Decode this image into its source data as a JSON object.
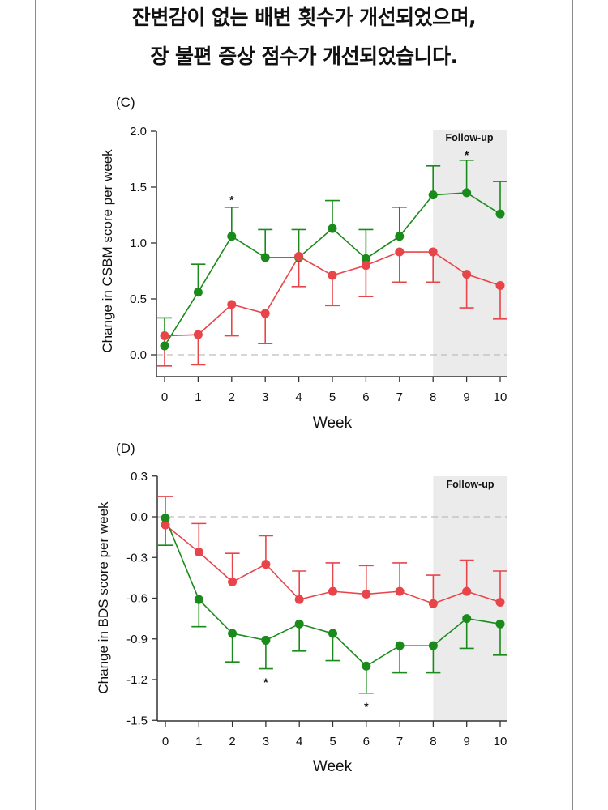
{
  "headline": {
    "line1": "잔변감이 없는 배변 횟수가 개선되었으며,",
    "line2": "장 불편 증상 점수가 개선되었습니다."
  },
  "colors": {
    "green": "#1a8a1a",
    "red": "#e8454a",
    "followup_bg": "#ebebeb",
    "zero_line": "#bdbdbd"
  },
  "chart_data": [
    {
      "type": "line",
      "panel": "(C)",
      "xlabel": "Week",
      "ylabel": "Change in CSBM score per week",
      "x": [
        0,
        1,
        2,
        3,
        4,
        5,
        6,
        7,
        8,
        9,
        10
      ],
      "xticks": [
        "0",
        "1",
        "2",
        "3",
        "4",
        "5",
        "6",
        "7",
        "8",
        "9",
        "10"
      ],
      "ylim": [
        -0.2,
        2.0
      ],
      "yticks": [
        "0.0",
        "0.5",
        "1.0",
        "1.5",
        "2.0"
      ],
      "ytick_values": [
        0.0,
        0.5,
        1.0,
        1.5,
        2.0
      ],
      "reference_line": 0.0,
      "shaded_region": {
        "label": "Follow-up",
        "x_from": 8,
        "x_to": 10
      },
      "series": [
        {
          "name": "green",
          "color": "#1a8a1a",
          "values": [
            0.08,
            0.56,
            1.06,
            0.87,
            0.87,
            1.13,
            0.86,
            1.06,
            1.43,
            1.45,
            1.26
          ],
          "error_upper": [
            0.33,
            0.81,
            1.32,
            1.12,
            1.12,
            1.38,
            1.12,
            1.32,
            1.69,
            1.74,
            1.55
          ],
          "error_direction": "up"
        },
        {
          "name": "red",
          "color": "#e8454a",
          "values": [
            0.17,
            0.18,
            0.45,
            0.37,
            0.88,
            0.71,
            0.8,
            0.92,
            0.92,
            0.72,
            0.62
          ],
          "error_lower": [
            -0.1,
            -0.09,
            0.17,
            0.1,
            0.61,
            0.44,
            0.52,
            0.65,
            0.65,
            0.42,
            0.32
          ],
          "error_direction": "down"
        }
      ],
      "annotations": [
        {
          "text": "*",
          "x": 2,
          "y": 1.41
        },
        {
          "text": "*",
          "x": 9,
          "y": 1.81
        }
      ]
    },
    {
      "type": "line",
      "panel": "(D)",
      "xlabel": "Week",
      "ylabel": "Change in BDS score per week",
      "x": [
        0,
        1,
        2,
        3,
        4,
        5,
        6,
        7,
        8,
        9,
        10
      ],
      "xticks": [
        "0",
        "1",
        "2",
        "3",
        "4",
        "5",
        "6",
        "7",
        "8",
        "9",
        "10"
      ],
      "ylim": [
        -1.5,
        0.3
      ],
      "yticks": [
        "0.3",
        "0.0",
        "-0.3",
        "-0.6",
        "-0.9",
        "-1.2",
        "-1.5"
      ],
      "ytick_values": [
        0.3,
        0.0,
        -0.3,
        -0.6,
        -0.9,
        -1.2,
        -1.5
      ],
      "reference_line": 0.0,
      "shaded_region": {
        "label": "Follow-up",
        "x_from": 8,
        "x_to": 10
      },
      "series": [
        {
          "name": "red",
          "color": "#e8454a",
          "values": [
            -0.06,
            -0.26,
            -0.48,
            -0.35,
            -0.61,
            -0.55,
            -0.57,
            -0.55,
            -0.64,
            -0.55,
            -0.63
          ],
          "error_upper": [
            0.15,
            -0.05,
            -0.27,
            -0.14,
            -0.4,
            -0.34,
            -0.36,
            -0.34,
            -0.43,
            -0.32,
            -0.4
          ],
          "error_direction": "up"
        },
        {
          "name": "green",
          "color": "#1a8a1a",
          "values": [
            -0.01,
            -0.61,
            -0.86,
            -0.91,
            -0.79,
            -0.86,
            -1.1,
            -0.95,
            -0.95,
            -0.75,
            -0.79
          ],
          "error_lower": [
            -0.21,
            -0.81,
            -1.07,
            -1.12,
            -0.99,
            -1.06,
            -1.3,
            -1.15,
            -1.15,
            -0.97,
            -1.02
          ],
          "error_direction": "down"
        }
      ],
      "annotations": [
        {
          "text": "*",
          "x": 3,
          "y": -1.2
        },
        {
          "text": "*",
          "x": 6,
          "y": -1.38
        }
      ]
    }
  ]
}
